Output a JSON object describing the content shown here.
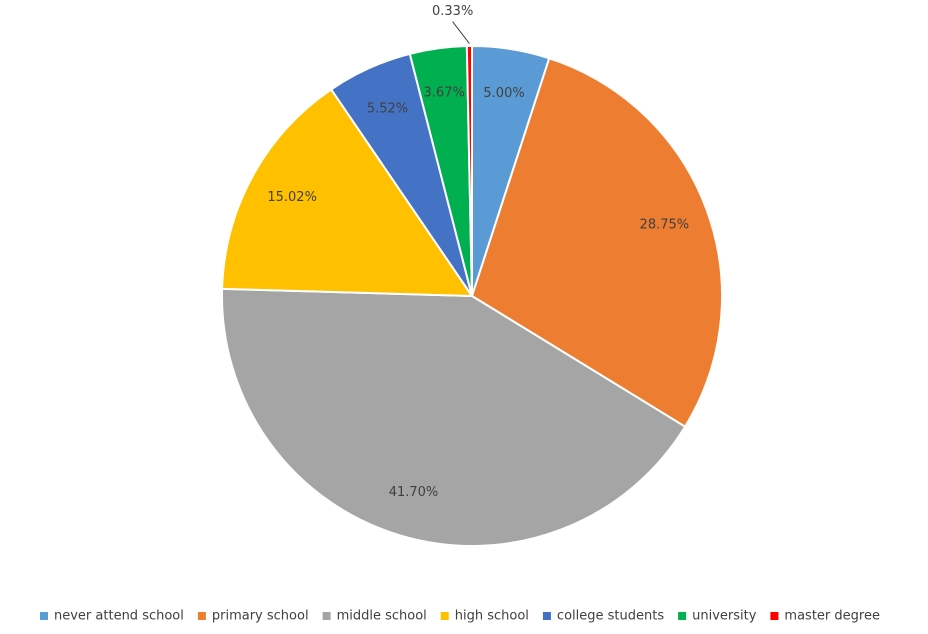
{
  "chart_data": {
    "type": "pie",
    "series": [
      {
        "name": "never attend school",
        "color": "#5b9bd5"
      },
      {
        "name": "primary school",
        "color": "#ed7d31"
      },
      {
        "name": "middle school",
        "color": "#a5a5a5"
      },
      {
        "name": "high school",
        "color": "#ffc000"
      },
      {
        "name": "college students",
        "color": "#4472c4"
      },
      {
        "name": "university",
        "color": "#00b050"
      },
      {
        "name": "master degree",
        "color": "#ff0000"
      }
    ],
    "values": [
      5.0,
      28.75,
      41.7,
      15.02,
      5.52,
      3.67,
      0.33
    ],
    "value_labels": [
      "5.00%",
      "28.75%",
      "41.70%",
      "15.02%",
      "5.52%",
      "3.67%",
      "0.33%"
    ],
    "legend": "bottom"
  }
}
